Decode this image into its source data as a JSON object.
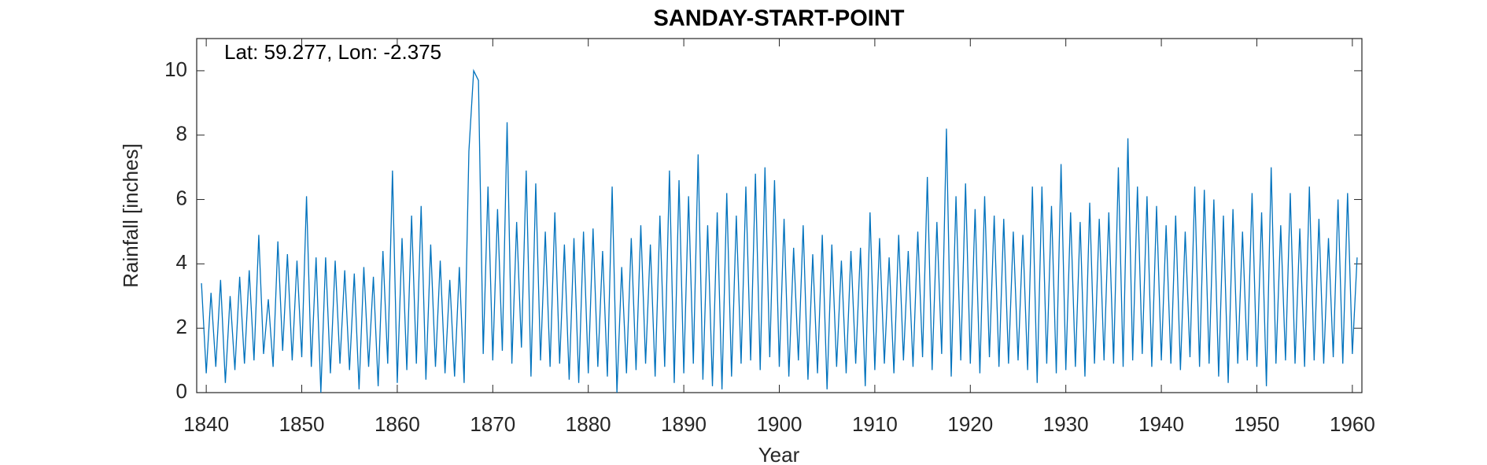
{
  "chart_data": {
    "type": "line",
    "title": "SANDAY-START-POINT",
    "xlabel": "Year",
    "ylabel": "Rainfall [inches]",
    "annotation": "Lat: 59.277, Lon: -2.375",
    "xlim": [
      1839,
      1961
    ],
    "ylim": [
      0,
      11
    ],
    "xticks": [
      1840,
      1850,
      1860,
      1870,
      1880,
      1890,
      1900,
      1910,
      1920,
      1930,
      1940,
      1950,
      1960
    ],
    "yticks": [
      0,
      2,
      4,
      6,
      8,
      10
    ],
    "series": [
      {
        "color": "#0072bd",
        "x": [
          1839.5,
          1840,
          1840.5,
          1841,
          1841.5,
          1842,
          1842.5,
          1843,
          1843.5,
          1844,
          1844.5,
          1845,
          1845.5,
          1846,
          1846.5,
          1847,
          1847.5,
          1848,
          1848.5,
          1849,
          1849.5,
          1850,
          1850.5,
          1851,
          1851.5,
          1852,
          1852.5,
          1853,
          1853.5,
          1854,
          1854.5,
          1855,
          1855.5,
          1856,
          1856.5,
          1857,
          1857.5,
          1858,
          1858.5,
          1859,
          1859.5,
          1860,
          1860.5,
          1861,
          1861.5,
          1862,
          1862.5,
          1863,
          1863.5,
          1864,
          1864.5,
          1865,
          1865.5,
          1866,
          1866.5,
          1867,
          1867.5,
          1868,
          1868.5,
          1869,
          1869.5,
          1870,
          1870.5,
          1871,
          1871.5,
          1872,
          1872.5,
          1873,
          1873.5,
          1874,
          1874.5,
          1875,
          1875.5,
          1876,
          1876.5,
          1877,
          1877.5,
          1878,
          1878.5,
          1879,
          1879.5,
          1880,
          1880.5,
          1881,
          1881.5,
          1882,
          1882.5,
          1883,
          1883.5,
          1884,
          1884.5,
          1885,
          1885.5,
          1886,
          1886.5,
          1887,
          1887.5,
          1888,
          1888.5,
          1889,
          1889.5,
          1890,
          1890.5,
          1891,
          1891.5,
          1892,
          1892.5,
          1893,
          1893.5,
          1894,
          1894.5,
          1895,
          1895.5,
          1896,
          1896.5,
          1897,
          1897.5,
          1898,
          1898.5,
          1899,
          1899.5,
          1900,
          1900.5,
          1901,
          1901.5,
          1902,
          1902.5,
          1903,
          1903.5,
          1904,
          1904.5,
          1905,
          1905.5,
          1906,
          1906.5,
          1907,
          1907.5,
          1908,
          1908.5,
          1909,
          1909.5,
          1910,
          1910.5,
          1911,
          1911.5,
          1912,
          1912.5,
          1913,
          1913.5,
          1914,
          1914.5,
          1915,
          1915.5,
          1916,
          1916.5,
          1917,
          1917.5,
          1918,
          1918.5,
          1919,
          1919.5,
          1920,
          1920.5,
          1921,
          1921.5,
          1922,
          1922.5,
          1923,
          1923.5,
          1924,
          1924.5,
          1925,
          1925.5,
          1926,
          1926.5,
          1927,
          1927.5,
          1928,
          1928.5,
          1929,
          1929.5,
          1930,
          1930.5,
          1931,
          1931.5,
          1932,
          1932.5,
          1933,
          1933.5,
          1934,
          1934.5,
          1935,
          1935.5,
          1936,
          1936.5,
          1937,
          1937.5,
          1938,
          1938.5,
          1939,
          1939.5,
          1940,
          1940.5,
          1941,
          1941.5,
          1942,
          1942.5,
          1943,
          1943.5,
          1944,
          1944.5,
          1945,
          1945.5,
          1946,
          1946.5,
          1947,
          1947.5,
          1948,
          1948.5,
          1949,
          1949.5,
          1950,
          1950.5,
          1951,
          1951.5,
          1952,
          1952.5,
          1953,
          1953.5,
          1954,
          1954.5,
          1955,
          1955.5,
          1956,
          1956.5,
          1957,
          1957.5,
          1958,
          1958.5,
          1959,
          1959.5,
          1960,
          1960.5
        ],
        "values": [
          3.4,
          0.6,
          3.1,
          0.8,
          3.5,
          0.3,
          3.0,
          0.7,
          3.6,
          0.9,
          3.8,
          1.0,
          4.9,
          1.2,
          2.9,
          0.8,
          4.7,
          1.3,
          4.3,
          1.0,
          4.1,
          1.1,
          6.1,
          0.8,
          4.2,
          0.0,
          4.2,
          0.6,
          4.1,
          0.9,
          3.8,
          0.7,
          3.7,
          0.1,
          3.9,
          0.8,
          3.6,
          0.2,
          4.4,
          0.9,
          6.9,
          0.3,
          4.8,
          0.7,
          5.5,
          0.9,
          5.8,
          0.4,
          4.6,
          0.8,
          4.1,
          0.6,
          3.5,
          0.5,
          3.9,
          0.3,
          7.5,
          10.0,
          9.7,
          1.2,
          6.4,
          1.0,
          5.7,
          1.3,
          8.4,
          0.9,
          5.3,
          1.4,
          6.9,
          0.5,
          6.5,
          1.0,
          5.0,
          0.8,
          5.6,
          0.9,
          4.6,
          0.4,
          4.8,
          0.3,
          5.0,
          0.6,
          5.1,
          0.8,
          4.4,
          0.5,
          6.4,
          0.0,
          3.9,
          0.6,
          4.8,
          0.7,
          5.2,
          0.9,
          4.6,
          0.5,
          5.5,
          0.8,
          6.9,
          0.3,
          6.6,
          0.6,
          6.1,
          0.9,
          7.4,
          0.4,
          5.2,
          0.2,
          5.6,
          0.1,
          6.2,
          0.5,
          5.5,
          0.9,
          6.4,
          1.0,
          6.8,
          0.7,
          7.0,
          1.1,
          6.6,
          0.8,
          5.4,
          0.5,
          4.5,
          1.0,
          5.2,
          0.4,
          4.3,
          0.6,
          4.9,
          0.1,
          4.6,
          0.8,
          4.1,
          0.6,
          4.4,
          0.9,
          4.5,
          0.2,
          5.6,
          0.7,
          4.8,
          0.9,
          4.2,
          0.6,
          4.9,
          1.0,
          4.4,
          0.8,
          5.0,
          1.1,
          6.7,
          0.7,
          5.3,
          1.2,
          8.2,
          0.5,
          6.1,
          1.0,
          6.5,
          0.9,
          5.7,
          0.6,
          6.1,
          1.1,
          5.5,
          0.8,
          5.4,
          0.9,
          5.0,
          1.0,
          4.9,
          0.7,
          6.4,
          0.3,
          6.4,
          0.9,
          5.8,
          0.6,
          7.1,
          0.7,
          5.6,
          0.8,
          5.3,
          0.5,
          5.9,
          0.9,
          5.4,
          1.0,
          5.6,
          0.9,
          7.0,
          0.8,
          7.9,
          1.0,
          6.4,
          1.2,
          6.1,
          0.8,
          5.8,
          1.0,
          5.2,
          0.9,
          5.5,
          0.7,
          5.0,
          1.1,
          6.4,
          0.8,
          6.3,
          0.9,
          6.0,
          0.5,
          5.5,
          0.3,
          5.7,
          0.9,
          5.0,
          1.0,
          6.2,
          0.8,
          5.6,
          0.2,
          7.0,
          0.9,
          5.2,
          1.0,
          6.2,
          0.9,
          5.1,
          0.8,
          6.4,
          1.0,
          5.4,
          0.9,
          4.8,
          1.1,
          6.0,
          0.9,
          6.2,
          1.2,
          4.2
        ]
      }
    ]
  }
}
